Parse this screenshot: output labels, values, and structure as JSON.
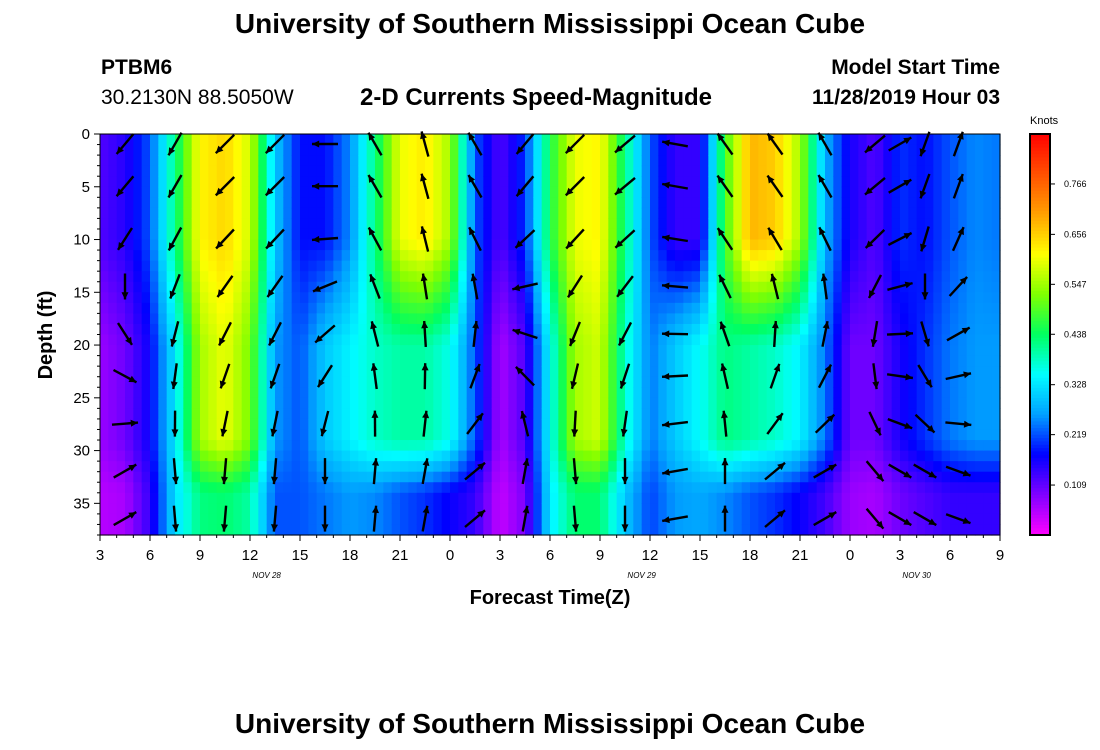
{
  "page": {
    "title_top": "University of Southern Mississippi Ocean Cube",
    "title_bottom": "University of Southern Mississippi Ocean Cube",
    "station_id": "PTBM6",
    "station_coords": "30.2130N 88.5050W",
    "plot_title": "2-D Currents Speed-Magnitude",
    "model_start_label": "Model Start Time",
    "model_start_value": "11/28/2019 Hour 03"
  },
  "chart_data": {
    "type": "heatmap",
    "title": "2-D Currents Speed-Magnitude",
    "xlabel": "Forecast Time(Z)",
    "ylabel": "Depth (ft)",
    "x_tick_labels": [
      "3",
      "6",
      "9",
      "12",
      "15",
      "18",
      "21",
      "0",
      "3",
      "6",
      "9",
      "12",
      "15",
      "18",
      "21",
      "0",
      "3",
      "6",
      "9"
    ],
    "x_range_hours": [
      0,
      54
    ],
    "date_labels": [
      {
        "text": "NOV  28",
        "hour": 10
      },
      {
        "text": "NOV  29",
        "hour": 32.5
      },
      {
        "text": "NOV  30",
        "hour": 49
      }
    ],
    "y_ticks": [
      0,
      5,
      10,
      15,
      20,
      25,
      30,
      35
    ],
    "ylim": [
      0,
      38
    ],
    "y_inverted": true,
    "colorbar": {
      "label": "Knots",
      "ticks": [
        "0.766",
        "0.656",
        "0.547",
        "0.438",
        "0.328",
        "0.219",
        "0.109"
      ],
      "tick_values": [
        0.766,
        0.656,
        0.547,
        0.438,
        0.328,
        0.219,
        0.109
      ],
      "range": [
        0.0,
        0.875
      ],
      "colors": [
        "#ff00ff",
        "#8000ff",
        "#0000ff",
        "#00a0ff",
        "#00ffff",
        "#00ff60",
        "#80ff00",
        "#ffff00",
        "#ffa000",
        "#ff5000",
        "#ff0000"
      ]
    },
    "speed_columns": [
      {
        "hour": 0.0,
        "surface": 0.12,
        "middle": 0.07,
        "bottom": 0.05
      },
      {
        "hour": 1.5,
        "surface": 0.15,
        "middle": 0.1,
        "bottom": 0.06
      },
      {
        "hour": 3.0,
        "surface": 0.22,
        "middle": 0.17,
        "bottom": 0.14
      },
      {
        "hour": 4.5,
        "surface": 0.42,
        "middle": 0.33,
        "bottom": 0.32
      },
      {
        "hour": 6.0,
        "surface": 0.62,
        "middle": 0.55,
        "bottom": 0.42
      },
      {
        "hour": 7.5,
        "surface": 0.65,
        "middle": 0.6,
        "bottom": 0.43
      },
      {
        "hour": 9.0,
        "surface": 0.58,
        "middle": 0.52,
        "bottom": 0.4
      },
      {
        "hour": 10.5,
        "surface": 0.3,
        "middle": 0.26,
        "bottom": 0.22
      },
      {
        "hour": 12.0,
        "surface": 0.18,
        "middle": 0.22,
        "bottom": 0.22
      },
      {
        "hour": 13.5,
        "surface": 0.18,
        "middle": 0.3,
        "bottom": 0.24
      },
      {
        "hour": 15.0,
        "surface": 0.25,
        "middle": 0.34,
        "bottom": 0.26
      },
      {
        "hour": 16.5,
        "surface": 0.42,
        "middle": 0.38,
        "bottom": 0.25
      },
      {
        "hour": 18.0,
        "surface": 0.6,
        "middle": 0.4,
        "bottom": 0.22
      },
      {
        "hour": 19.5,
        "surface": 0.63,
        "middle": 0.4,
        "bottom": 0.2
      },
      {
        "hour": 21.0,
        "surface": 0.55,
        "middle": 0.36,
        "bottom": 0.17
      },
      {
        "hour": 22.5,
        "surface": 0.22,
        "middle": 0.22,
        "bottom": 0.14
      },
      {
        "hour": 24.0,
        "surface": 0.12,
        "middle": 0.06,
        "bottom": 0.04
      },
      {
        "hour": 25.5,
        "surface": 0.2,
        "middle": 0.12,
        "bottom": 0.09
      },
      {
        "hour": 27.0,
        "surface": 0.45,
        "middle": 0.35,
        "bottom": 0.33
      },
      {
        "hour": 28.5,
        "surface": 0.6,
        "middle": 0.55,
        "bottom": 0.43
      },
      {
        "hour": 30.0,
        "surface": 0.62,
        "middle": 0.58,
        "bottom": 0.43
      },
      {
        "hour": 31.5,
        "surface": 0.42,
        "middle": 0.38,
        "bottom": 0.3
      },
      {
        "hour": 33.0,
        "surface": 0.22,
        "middle": 0.24,
        "bottom": 0.21
      },
      {
        "hour": 34.5,
        "surface": 0.14,
        "middle": 0.3,
        "bottom": 0.26
      },
      {
        "hour": 36.0,
        "surface": 0.14,
        "middle": 0.35,
        "bottom": 0.27
      },
      {
        "hour": 37.5,
        "surface": 0.48,
        "middle": 0.42,
        "bottom": 0.25
      },
      {
        "hour": 39.0,
        "surface": 0.68,
        "middle": 0.4,
        "bottom": 0.22
      },
      {
        "hour": 40.5,
        "surface": 0.66,
        "middle": 0.38,
        "bottom": 0.2
      },
      {
        "hour": 42.0,
        "surface": 0.55,
        "middle": 0.34,
        "bottom": 0.17
      },
      {
        "hour": 43.5,
        "surface": 0.28,
        "middle": 0.24,
        "bottom": 0.13
      },
      {
        "hour": 45.0,
        "surface": 0.16,
        "middle": 0.1,
        "bottom": 0.07
      },
      {
        "hour": 46.5,
        "surface": 0.12,
        "middle": 0.1,
        "bottom": 0.06
      },
      {
        "hour": 48.0,
        "surface": 0.2,
        "middle": 0.16,
        "bottom": 0.1
      },
      {
        "hour": 49.5,
        "surface": 0.18,
        "middle": 0.2,
        "bottom": 0.12
      },
      {
        "hour": 51.0,
        "surface": 0.22,
        "middle": 0.24,
        "bottom": 0.14
      },
      {
        "hour": 52.5,
        "surface": 0.25,
        "middle": 0.26,
        "bottom": 0.14
      },
      {
        "hour": 54.0,
        "surface": 0.24,
        "middle": 0.26,
        "bottom": 0.14
      }
    ],
    "vector_columns": [
      {
        "hour": 1.5,
        "surface_dir": 220,
        "bottom_dir": 60
      },
      {
        "hour": 4.5,
        "surface_dir": 210,
        "bottom_dir": 175
      },
      {
        "hour": 7.5,
        "surface_dir": 225,
        "bottom_dir": 185
      },
      {
        "hour": 10.5,
        "surface_dir": 225,
        "bottom_dir": 185
      },
      {
        "hour": 13.5,
        "surface_dir": 270,
        "bottom_dir": 180
      },
      {
        "hour": 16.5,
        "surface_dir": 330,
        "bottom_dir": 5
      },
      {
        "hour": 19.5,
        "surface_dir": 345,
        "bottom_dir": 10
      },
      {
        "hour": 22.5,
        "surface_dir": 330,
        "bottom_dir": 50
      },
      {
        "hour": 25.5,
        "surface_dir": 220,
        "bottom_dir": 10
      },
      {
        "hour": 28.5,
        "surface_dir": 225,
        "bottom_dir": 175
      },
      {
        "hour": 31.5,
        "surface_dir": 230,
        "bottom_dir": 180
      },
      {
        "hour": 34.5,
        "surface_dir": 280,
        "bottom_dir": 260
      },
      {
        "hour": 37.5,
        "surface_dir": 325,
        "bottom_dir": 0
      },
      {
        "hour": 40.5,
        "surface_dir": 325,
        "bottom_dir": 50
      },
      {
        "hour": 43.5,
        "surface_dir": 330,
        "bottom_dir": 60
      },
      {
        "hour": 46.5,
        "surface_dir": 230,
        "bottom_dir": 140
      },
      {
        "hour": 48.0,
        "surface_dir": 60,
        "bottom_dir": 120
      },
      {
        "hour": 49.5,
        "surface_dir": 200,
        "bottom_dir": 120
      },
      {
        "hour": 51.5,
        "surface_dir": 20,
        "bottom_dir": 110
      }
    ],
    "vector_depths": [
      0,
      4,
      9,
      13.5,
      18,
      22,
      26.5,
      31,
      35.5
    ]
  }
}
